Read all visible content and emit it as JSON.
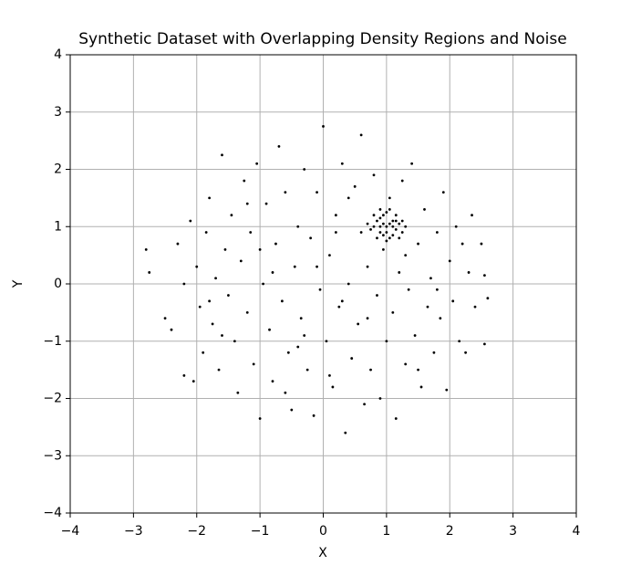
{
  "chart_data": {
    "type": "scatter",
    "title": "Synthetic Dataset with Overlapping Density Regions and Noise",
    "xlabel": "X",
    "ylabel": "Y",
    "color": "#000000",
    "grid": true,
    "xlim": [
      -4,
      4
    ],
    "ylim": [
      -4,
      4
    ],
    "xticks": [
      {
        "value": -4,
        "label": "−4"
      },
      {
        "value": -3,
        "label": "−3"
      },
      {
        "value": -2,
        "label": "−2"
      },
      {
        "value": -1,
        "label": "−1"
      },
      0,
      1,
      2,
      3,
      4
    ],
    "yticks": [
      {
        "value": -4,
        "label": "−4"
      },
      {
        "value": -3,
        "label": "−3"
      },
      {
        "value": -2,
        "label": "−2"
      },
      {
        "value": -1,
        "label": "−1"
      },
      0,
      1,
      2,
      3,
      4
    ],
    "x": [
      -2.8,
      -2.75,
      -2.5,
      -2.4,
      -2.3,
      -2.2,
      -2.1,
      -2.05,
      -2.0,
      -1.95,
      -1.9,
      -1.85,
      -1.8,
      -1.75,
      -1.7,
      -1.65,
      -1.6,
      -1.55,
      -1.5,
      -1.45,
      -1.4,
      -1.35,
      -1.3,
      -1.25,
      -1.2,
      -1.15,
      -1.1,
      -1.05,
      -1.0,
      -0.95,
      -0.9,
      -0.85,
      -0.8,
      -0.75,
      -0.7,
      -0.65,
      -0.6,
      -0.55,
      -0.5,
      -0.45,
      -0.4,
      -0.35,
      -0.3,
      -0.25,
      -0.2,
      -0.15,
      -0.1,
      -0.05,
      0.0,
      0.05,
      0.1,
      0.15,
      0.2,
      0.25,
      0.3,
      0.35,
      0.4,
      0.45,
      0.5,
      0.55,
      0.6,
      0.65,
      0.7,
      0.75,
      0.8,
      0.85,
      0.9,
      0.95,
      1.0,
      1.05,
      1.1,
      1.15,
      1.2,
      1.25,
      1.3,
      1.35,
      1.4,
      1.45,
      1.5,
      1.55,
      1.6,
      1.65,
      1.7,
      1.75,
      1.8,
      1.85,
      1.9,
      1.95,
      2.0,
      2.05,
      2.1,
      2.15,
      2.2,
      2.25,
      2.3,
      2.35,
      2.4,
      2.5,
      2.55,
      2.6,
      2.55,
      -1.2,
      -0.8,
      -0.3,
      0.3,
      0.6,
      -1.6,
      1.3,
      0.1,
      -0.6,
      1.8,
      -2.2,
      0.9,
      -0.1,
      0.4,
      -1.0,
      1.5,
      -0.4,
      0.7,
      -1.8,
      0.2,
      0.8,
      0.85,
      0.9,
      0.95,
      1.0,
      1.05,
      1.1,
      1.15,
      1.2,
      1.25,
      0.75,
      0.8,
      0.9,
      0.95,
      1.0,
      1.05,
      1.1,
      1.15,
      1.2,
      0.85,
      0.9,
      1.0,
      1.05,
      1.1,
      1.25,
      0.7,
      1.3,
      0.95,
      1.0,
      1.15
    ],
    "y": [
      0.6,
      0.2,
      -0.6,
      -0.8,
      0.7,
      -1.6,
      1.1,
      -1.7,
      0.3,
      -0.4,
      -1.2,
      0.9,
      1.5,
      -0.7,
      0.1,
      -1.5,
      2.25,
      0.6,
      -0.2,
      1.2,
      -1.0,
      -1.9,
      0.4,
      1.8,
      -0.5,
      0.9,
      -1.4,
      2.1,
      -2.35,
      0.0,
      1.4,
      -0.8,
      -1.7,
      0.7,
      2.4,
      -0.3,
      1.6,
      -1.2,
      -2.2,
      0.3,
      1.0,
      -0.6,
      2.0,
      -1.5,
      0.8,
      -2.3,
      1.6,
      -0.1,
      2.75,
      -1.0,
      0.5,
      -1.8,
      1.2,
      -0.4,
      2.1,
      -2.6,
      0.0,
      -1.3,
      1.7,
      -0.7,
      2.6,
      -2.1,
      0.3,
      -1.5,
      1.9,
      -0.2,
      -2.0,
      0.6,
      -1.0,
      1.5,
      -0.5,
      -2.35,
      0.2,
      1.8,
      -1.4,
      -0.1,
      2.1,
      -0.9,
      0.7,
      -1.8,
      1.3,
      -0.4,
      0.1,
      -1.2,
      0.9,
      -0.6,
      1.6,
      -1.85,
      0.4,
      -0.3,
      1.0,
      -1.0,
      0.7,
      -1.2,
      0.2,
      1.2,
      -0.4,
      0.7,
      0.15,
      -0.25,
      -1.05,
      1.4,
      0.2,
      -0.9,
      -0.3,
      0.9,
      -0.9,
      0.5,
      -1.6,
      -1.9,
      -0.1,
      0.0,
      1.3,
      0.3,
      1.5,
      0.6,
      -1.5,
      -1.1,
      -0.6,
      -0.3,
      0.9,
      1.0,
      1.1,
      0.9,
      1.2,
      1.0,
      0.8,
      1.1,
      0.95,
      1.05,
      0.9,
      0.95,
      1.2,
      1.15,
      0.85,
      1.25,
      1.05,
      0.85,
      1.2,
      0.8,
      0.8,
      1.0,
      0.75,
      1.3,
      1.0,
      1.1,
      1.05,
      1.0,
      1.05,
      0.9,
      1.1
    ]
  }
}
